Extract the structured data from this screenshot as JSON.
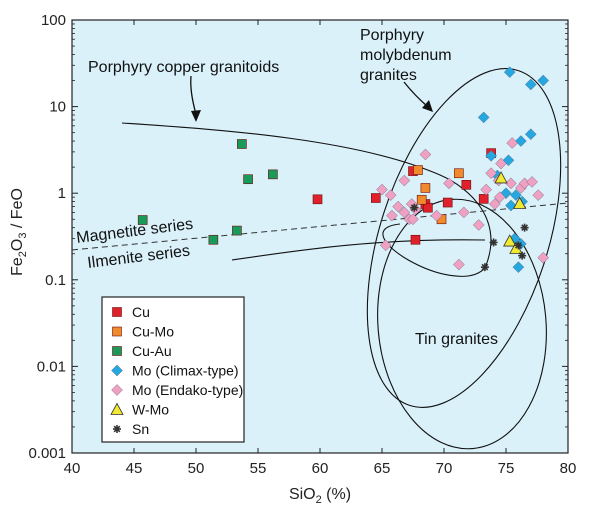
{
  "chart_data": {
    "type": "scatter",
    "title": "",
    "xlabel": "SiO2 (%)",
    "ylabel": "Fe2O3 / FeO",
    "xlim": [
      40,
      80
    ],
    "ylim": [
      0.001,
      100
    ],
    "y_scale": "log",
    "x_ticks": [
      "40",
      "45",
      "50",
      "55",
      "60",
      "65",
      "70",
      "75",
      "80"
    ],
    "y_ticks": [
      "0.001",
      "0.01",
      "0.1",
      "1",
      "10",
      "100"
    ],
    "grid": false,
    "legend_position": "bottom-left",
    "colors": {
      "background": "#daf1fa",
      "Cu": "#e0202a",
      "Cu-Mo": "#f08a2a",
      "Cu-Au": "#1a9a5a",
      "Mo (Climax-type)": "#25a7e0",
      "Mo (Endako-type)": "#f0a0c0",
      "W-Mo": "#f2ea30",
      "Sn": "#333333"
    },
    "series": [
      {
        "name": "Cu",
        "marker": "square",
        "points": [
          [
            59.8,
            0.85
          ],
          [
            64.5,
            0.88
          ],
          [
            67.5,
            1.8
          ],
          [
            67.7,
            0.29
          ],
          [
            68.5,
            0.75
          ],
          [
            70.3,
            0.78
          ],
          [
            71.8,
            1.25
          ],
          [
            73.2,
            0.86
          ],
          [
            73.8,
            2.9
          ],
          [
            68.7,
            0.68
          ]
        ]
      },
      {
        "name": "Cu-Mo",
        "marker": "square",
        "points": [
          [
            67.9,
            1.85
          ],
          [
            68.5,
            1.15
          ],
          [
            69.8,
            0.5
          ],
          [
            71.2,
            1.7
          ],
          [
            68.2,
            0.84
          ]
        ]
      },
      {
        "name": "Cu-Au",
        "marker": "square",
        "points": [
          [
            45.7,
            0.49
          ],
          [
            51.4,
            0.29
          ],
          [
            53.3,
            0.37
          ],
          [
            53.7,
            3.7
          ],
          [
            54.2,
            1.45
          ],
          [
            56.2,
            1.65
          ]
        ]
      },
      {
        "name": "Mo (Climax-type)",
        "marker": "diamond",
        "points": [
          [
            75.3,
            25
          ],
          [
            77.0,
            18
          ],
          [
            78.0,
            20
          ],
          [
            73.2,
            7.5
          ],
          [
            73.8,
            2.7
          ],
          [
            75.2,
            2.4
          ],
          [
            76.2,
            4.0
          ],
          [
            77.0,
            4.8
          ],
          [
            75.8,
            0.95
          ],
          [
            75.4,
            0.72
          ],
          [
            74.3,
            1.6
          ],
          [
            75.7,
            0.3
          ],
          [
            76.2,
            0.26
          ],
          [
            76.0,
            0.14
          ],
          [
            75.0,
            1.0
          ],
          [
            76.3,
            0.8
          ]
        ]
      },
      {
        "name": "Mo (Endako-type)",
        "marker": "diamond",
        "points": [
          [
            65.0,
            1.1
          ],
          [
            65.7,
            0.95
          ],
          [
            66.8,
            1.4
          ],
          [
            67.2,
            0.5
          ],
          [
            65.8,
            0.55
          ],
          [
            66.3,
            0.7
          ],
          [
            66.8,
            0.6
          ],
          [
            67.4,
            0.75
          ],
          [
            67.5,
            0.5
          ],
          [
            68.5,
            2.8
          ],
          [
            69.4,
            0.55
          ],
          [
            70.4,
            1.3
          ],
          [
            71.6,
            0.6
          ],
          [
            72.8,
            0.43
          ],
          [
            73.4,
            1.1
          ],
          [
            73.8,
            1.7
          ],
          [
            74.4,
            1.4
          ],
          [
            74.5,
            0.9
          ],
          [
            74.1,
            0.75
          ],
          [
            75.5,
            3.8
          ],
          [
            76.2,
            1.15
          ],
          [
            76.5,
            1.3
          ],
          [
            77.1,
            1.35
          ],
          [
            75.4,
            1.3
          ],
          [
            77.6,
            0.95
          ],
          [
            65.3,
            0.25
          ],
          [
            71.2,
            0.15
          ],
          [
            78.0,
            0.18
          ],
          [
            74.6,
            2.2
          ],
          [
            67.7,
            0.65
          ]
        ]
      },
      {
        "name": "W-Mo",
        "marker": "triangle",
        "points": [
          [
            74.6,
            1.5
          ],
          [
            75.3,
            0.28
          ],
          [
            75.8,
            0.23
          ],
          [
            76.1,
            0.76
          ]
        ]
      },
      {
        "name": "Sn",
        "marker": "asterisk",
        "points": [
          [
            67.6,
            0.68
          ],
          [
            73.3,
            0.14
          ],
          [
            74.0,
            0.27
          ],
          [
            76.3,
            0.19
          ],
          [
            76.5,
            0.4
          ],
          [
            76.0,
            0.25
          ]
        ]
      }
    ],
    "annotations": [
      {
        "id": "porphyry-copper",
        "text": "Porphyry copper granitoids"
      },
      {
        "id": "porphyry-molybdenum",
        "lines": [
          "Porphyry",
          "molybdenum",
          "granites"
        ]
      },
      {
        "id": "magnetite",
        "text": "Magnetite series"
      },
      {
        "id": "ilmenite",
        "text": "Ilmenite series"
      },
      {
        "id": "tin",
        "text": "Tin granites"
      }
    ]
  }
}
